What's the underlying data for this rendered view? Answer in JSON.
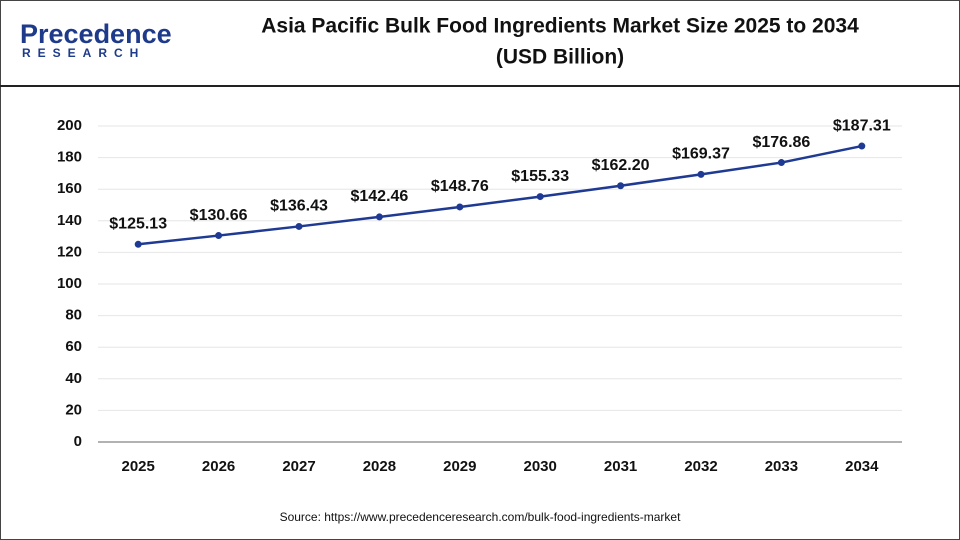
{
  "logo": {
    "name": "Precedence",
    "tagline": "RESEARCH"
  },
  "chart_data": {
    "type": "line",
    "title": "Asia Pacific Bulk Food Ingredients Market Size 2025 to 2034",
    "subtitle": "(USD Billion)",
    "categories": [
      "2025",
      "2026",
      "2027",
      "2028",
      "2029",
      "2030",
      "2031",
      "2032",
      "2033",
      "2034"
    ],
    "values": [
      125.13,
      130.66,
      136.43,
      142.46,
      148.76,
      155.33,
      162.2,
      169.37,
      176.86,
      187.31
    ],
    "value_labels": [
      "$125.13",
      "$130.66",
      "$136.43",
      "$142.46",
      "$148.76",
      "$155.33",
      "$162.20",
      "$169.37",
      "$176.86",
      "$187.31"
    ],
    "color": "#1f3a93",
    "ylim": [
      0,
      200
    ],
    "yticks": [
      0,
      20,
      40,
      60,
      80,
      100,
      120,
      140,
      160,
      180,
      200
    ],
    "grid": true,
    "source": "Source: https://www.precedenceresearch.com/bulk-food-ingredients-market"
  }
}
